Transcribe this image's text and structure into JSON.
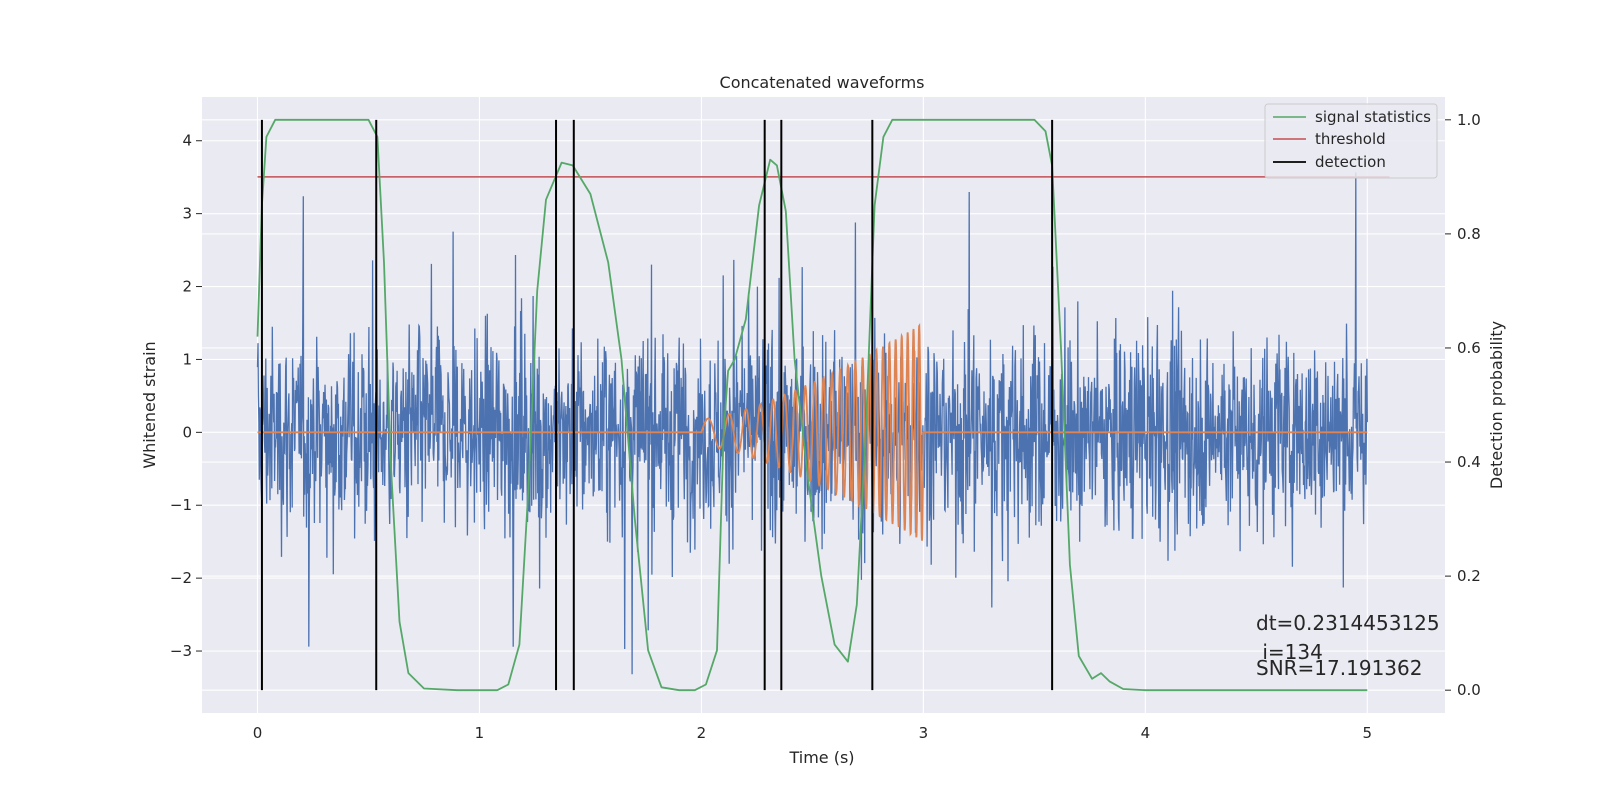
{
  "chart_data": {
    "type": "line",
    "title": "Concatenated waveforms",
    "xlabel": "Time (s)",
    "ylabel_left": "Whitened strain",
    "ylabel_right": "Detection probability",
    "xlim": [
      -0.25,
      5.35
    ],
    "ylim_left": [
      -3.85,
      4.6
    ],
    "ylim_right": [
      -0.04,
      1.04
    ],
    "x_ticks": [
      0,
      1,
      2,
      3,
      4,
      5
    ],
    "x_tick_labels": [
      "0",
      "1",
      "2",
      "3",
      "4",
      "5"
    ],
    "y_left_ticks": [
      -3,
      -2,
      -1,
      0,
      1,
      2,
      3,
      4
    ],
    "y_left_tick_labels": [
      "−3",
      "−2",
      "−1",
      "0",
      "1",
      "2",
      "3",
      "4"
    ],
    "y_right_ticks": [
      0.0,
      0.2,
      0.4,
      0.6,
      0.8,
      1.0
    ],
    "y_right_tick_labels": [
      "0.0",
      "0.2",
      "0.4",
      "0.6",
      "0.8",
      "1.0"
    ],
    "grid": true,
    "legend_position": "top-right",
    "legend": [
      {
        "label": "signal statistics",
        "color": "#55a868"
      },
      {
        "label": "threshold",
        "color": "#c44e52"
      },
      {
        "label": "detection",
        "color": "#000000"
      }
    ],
    "noise_series": {
      "axis": "left",
      "color": "#4c72b0",
      "x_range": [
        0,
        5
      ],
      "typical_amplitude": 1.0,
      "peak_range": [
        -3.5,
        4.2
      ]
    },
    "injected_signal": {
      "axis": "left",
      "color": "#dd8452",
      "x_start": 2.0,
      "x_end": 3.0,
      "peak_amplitude": 1.5,
      "baseline": 0
    },
    "signal_statistics": {
      "axis": "right",
      "color": "#55a868",
      "points": [
        [
          0.0,
          0.62
        ],
        [
          0.02,
          0.85
        ],
        [
          0.04,
          0.97
        ],
        [
          0.08,
          1.0
        ],
        [
          0.2,
          1.0
        ],
        [
          0.5,
          1.0
        ],
        [
          0.54,
          0.97
        ],
        [
          0.57,
          0.75
        ],
        [
          0.6,
          0.4
        ],
        [
          0.64,
          0.12
        ],
        [
          0.68,
          0.03
        ],
        [
          0.75,
          0.003
        ],
        [
          0.9,
          0.0
        ],
        [
          1.08,
          0.0
        ],
        [
          1.13,
          0.01
        ],
        [
          1.18,
          0.08
        ],
        [
          1.22,
          0.35
        ],
        [
          1.26,
          0.7
        ],
        [
          1.3,
          0.86
        ],
        [
          1.37,
          0.925
        ],
        [
          1.42,
          0.92
        ],
        [
          1.5,
          0.87
        ],
        [
          1.58,
          0.75
        ],
        [
          1.64,
          0.58
        ],
        [
          1.7,
          0.3
        ],
        [
          1.76,
          0.07
        ],
        [
          1.82,
          0.005
        ],
        [
          1.9,
          0.0
        ],
        [
          1.97,
          0.0
        ],
        [
          2.02,
          0.01
        ],
        [
          2.07,
          0.07
        ],
        [
          2.1,
          0.45
        ],
        [
          2.12,
          0.56
        ],
        [
          2.15,
          0.58
        ],
        [
          2.2,
          0.65
        ],
        [
          2.26,
          0.85
        ],
        [
          2.31,
          0.93
        ],
        [
          2.34,
          0.92
        ],
        [
          2.38,
          0.84
        ],
        [
          2.42,
          0.58
        ],
        [
          2.48,
          0.37
        ],
        [
          2.54,
          0.2
        ],
        [
          2.6,
          0.08
        ],
        [
          2.66,
          0.05
        ],
        [
          2.7,
          0.15
        ],
        [
          2.74,
          0.45
        ],
        [
          2.78,
          0.85
        ],
        [
          2.82,
          0.97
        ],
        [
          2.86,
          1.0
        ],
        [
          3.0,
          1.0
        ],
        [
          3.5,
          1.0
        ],
        [
          3.55,
          0.98
        ],
        [
          3.58,
          0.92
        ],
        [
          3.62,
          0.6
        ],
        [
          3.66,
          0.22
        ],
        [
          3.7,
          0.06
        ],
        [
          3.76,
          0.02
        ],
        [
          3.8,
          0.03
        ],
        [
          3.84,
          0.015
        ],
        [
          3.9,
          0.002
        ],
        [
          4.0,
          0.0
        ],
        [
          4.5,
          0.0
        ],
        [
          5.0,
          0.0
        ]
      ]
    },
    "threshold": {
      "axis": "right",
      "color": "#c44e52",
      "value": 0.9,
      "x_range": [
        0,
        5.1
      ]
    },
    "detections": {
      "color": "#000000",
      "x": [
        0.02,
        0.535,
        1.345,
        1.425,
        2.285,
        2.36,
        2.77,
        3.58
      ]
    }
  },
  "annotation": {
    "line1": "dt=0.2314453125",
    "line2": " i=134",
    "line3": "SNR=17.191362"
  }
}
